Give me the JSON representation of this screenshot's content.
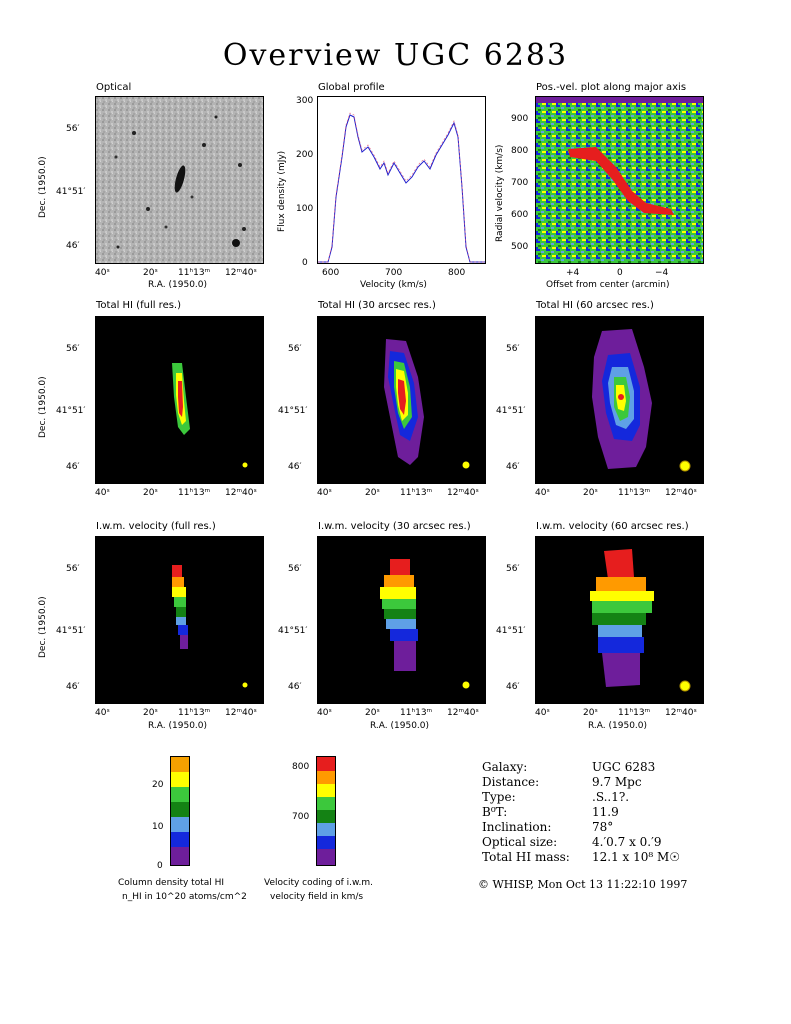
{
  "title": "Overview UGC 6283",
  "panels": {
    "optical": "Optical",
    "profile": "Global profile",
    "pv": "Pos.-vel. plot along major axis",
    "hi_full": "Total HI (full res.)",
    "hi_30": "Total HI (30 arcsec res.)",
    "hi_60": "Total HI (60 arcsec res.)",
    "vel_full": "I.w.m. velocity (full res.)",
    "vel_30": "I.w.m. velocity (30 arcsec res.)",
    "vel_60": "I.w.m. velocity (60 arcsec res.)"
  },
  "axes": {
    "ra_label": "R.A. (1950.0)",
    "dec_label": "Dec. (1950.0)",
    "ra_ticks": [
      "40ˢ",
      "20ˢ",
      "11ʰ13ᵐ",
      "12ᵐ40ˢ"
    ],
    "dec_ticks": [
      "56′",
      "41°51′",
      "46′"
    ],
    "profile_xlabel": "Velocity (km/s)",
    "profile_ylabel": "Flux density (mJy)",
    "profile_xticks": [
      "600",
      "700",
      "800"
    ],
    "profile_yticks": [
      "0",
      "100",
      "200",
      "300"
    ],
    "pv_xlabel": "Offset from center (arcmin)",
    "pv_ylabel": "Radial velocity (km/s)",
    "pv_xticks": [
      "+4",
      "0",
      "−4"
    ],
    "pv_yticks": [
      "500",
      "600",
      "700",
      "800",
      "900"
    ]
  },
  "colorbars": {
    "density_ticks": [
      "20",
      "10",
      "0"
    ],
    "density_caption_1": "Column density total HI",
    "density_caption_2": "n_HI in 10^20 atoms/cm^2",
    "velocity_ticks": [
      "800",
      "700"
    ],
    "velocity_caption_1": "Velocity coding of i.w.m.",
    "velocity_caption_2": "velocity field in km/s",
    "colors": [
      "#f5a000",
      "#ffff00",
      "#3cc83c",
      "#148214",
      "#5fa0e6",
      "#1428dc",
      "#6e1e9b"
    ],
    "velocity_colors": [
      "#e61e1e",
      "#ff9a00",
      "#ffff00",
      "#3cc83c",
      "#148214",
      "#5fa0e6",
      "#1428dc",
      "#6e1e9b"
    ]
  },
  "info": {
    "galaxy_label": "Galaxy:",
    "galaxy_value": "UGC 6283",
    "distance_label": "Distance:",
    "distance_value": "9.7 Mpc",
    "type_label": "Type:",
    "type_value": ".S..1?.",
    "bt_label": "B⁰T:",
    "bt_value": "11.9",
    "incl_label": "Inclination:",
    "incl_value": "78°",
    "size_label": "Optical size:",
    "size_value": "4.′0.7 x 0.′9",
    "mass_label": "Total HI mass:",
    "mass_value": "12.1 x 10⁸ M☉"
  },
  "footer": "© WHISP, Mon Oct 13 11:22:10 1997"
}
